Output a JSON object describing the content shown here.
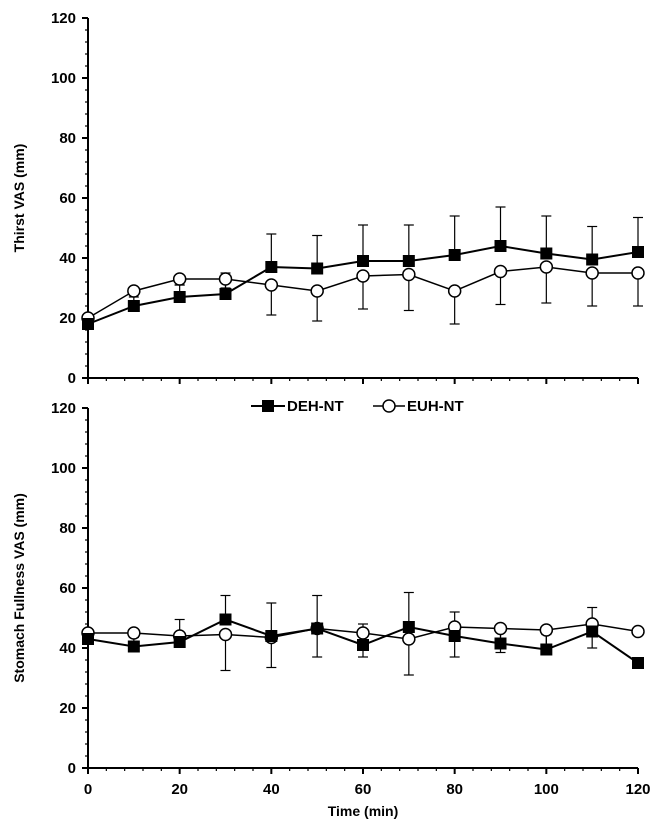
{
  "colors": {
    "axis": "#000000",
    "deh_marker": "#000000",
    "euh_marker_fill": "#ffffff"
  },
  "legend": {
    "entries": [
      {
        "label": "DEH-NT",
        "marker": "filled-square"
      },
      {
        "label": "EUH-NT",
        "marker": "open-circle"
      }
    ],
    "placement": "between panels, centered"
  },
  "chart_data": [
    {
      "type": "line",
      "title": "",
      "xlabel": "",
      "ylabel": "Thirst VAS (mm)",
      "xlim": [
        0,
        120
      ],
      "ylim": [
        0,
        120
      ],
      "yticks": [
        0,
        20,
        40,
        60,
        80,
        100,
        120
      ],
      "xticks": [
        0,
        20,
        40,
        60,
        80,
        100,
        120
      ],
      "x_tick_labels_shown": false,
      "grid": false,
      "x": [
        0,
        10,
        20,
        30,
        40,
        50,
        60,
        70,
        80,
        90,
        100,
        110,
        120
      ],
      "series": [
        {
          "name": "DEH-NT",
          "marker": "filled-square",
          "values": [
            18,
            24,
            27,
            28,
            37,
            36.5,
            39,
            39,
            41,
            44,
            41.5,
            39.5,
            42
          ],
          "error": [
            3,
            3,
            4,
            7,
            11,
            11,
            12,
            12,
            13,
            13,
            12.5,
            11,
            11.5
          ]
        },
        {
          "name": "EUH-NT",
          "marker": "open-circle",
          "values": [
            20,
            29,
            33,
            33,
            31,
            29,
            34,
            34.5,
            29,
            35.5,
            37,
            35,
            35
          ],
          "error": [
            1,
            1,
            2,
            3,
            10,
            10,
            11,
            12,
            11,
            11,
            12,
            11,
            11
          ]
        }
      ]
    },
    {
      "type": "line",
      "title": "",
      "xlabel": "Time (min)",
      "ylabel": "Stomach Fullness VAS (mm)",
      "xlim": [
        0,
        120
      ],
      "ylim": [
        0,
        120
      ],
      "yticks": [
        0,
        20,
        40,
        60,
        80,
        100,
        120
      ],
      "xticks": [
        0,
        20,
        40,
        60,
        80,
        100,
        120
      ],
      "x_tick_labels_shown": true,
      "grid": false,
      "x": [
        0,
        10,
        20,
        30,
        40,
        50,
        60,
        70,
        80,
        90,
        100,
        110,
        120
      ],
      "series": [
        {
          "name": "DEH-NT",
          "marker": "filled-square",
          "values": [
            43,
            40.5,
            42,
            49.5,
            44,
            46.5,
            41,
            47,
            44,
            41.5,
            39.5,
            45.5,
            35
          ],
          "error": [
            3,
            3,
            7.5,
            8,
            11,
            11,
            7,
            11.5,
            8,
            6,
            5,
            8,
            0
          ]
        },
        {
          "name": "EUH-NT",
          "marker": "open-circle",
          "values": [
            45,
            45,
            44,
            44.5,
            43.5,
            46.5,
            45,
            43,
            47,
            46.5,
            46,
            48,
            45.5
          ],
          "error": [
            1,
            1,
            2,
            12,
            10,
            9.5,
            8,
            12,
            10,
            8,
            6,
            8,
            0
          ]
        }
      ]
    }
  ]
}
